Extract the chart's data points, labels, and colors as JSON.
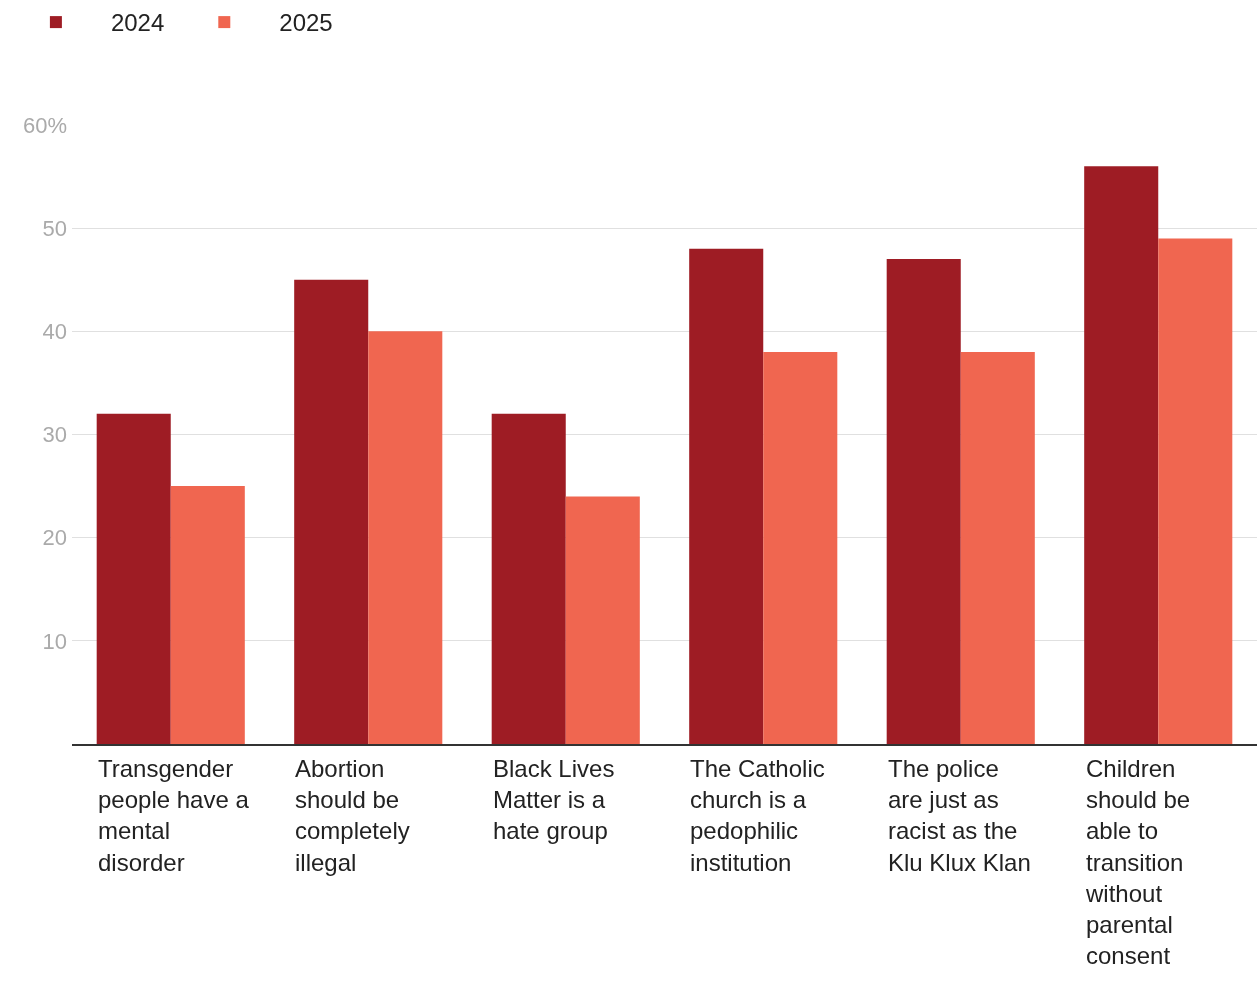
{
  "chart_data": {
    "type": "bar",
    "categories": [
      "Transgender people have a mental disorder",
      "Abortion should be completely illegal",
      "Black Lives Matter is a hate group",
      "The Catholic church is a pedophilic institution",
      "The police are just as racist as the Klu Klux Klan",
      "Children should be able to transition without parental consent"
    ],
    "series": [
      {
        "name": "2024",
        "color": "#9e1c24",
        "values": [
          32,
          45,
          32,
          48,
          47,
          56
        ]
      },
      {
        "name": "2025",
        "color": "#f06650",
        "values": [
          25,
          40,
          24,
          38,
          38,
          49
        ]
      }
    ],
    "ylim": [
      0,
      60
    ],
    "yticks": [
      {
        "value": 0,
        "label": null
      },
      10,
      20,
      30,
      40,
      50,
      {
        "value": 60,
        "label": "60%"
      }
    ],
    "grid": "y",
    "legend": "top left"
  }
}
